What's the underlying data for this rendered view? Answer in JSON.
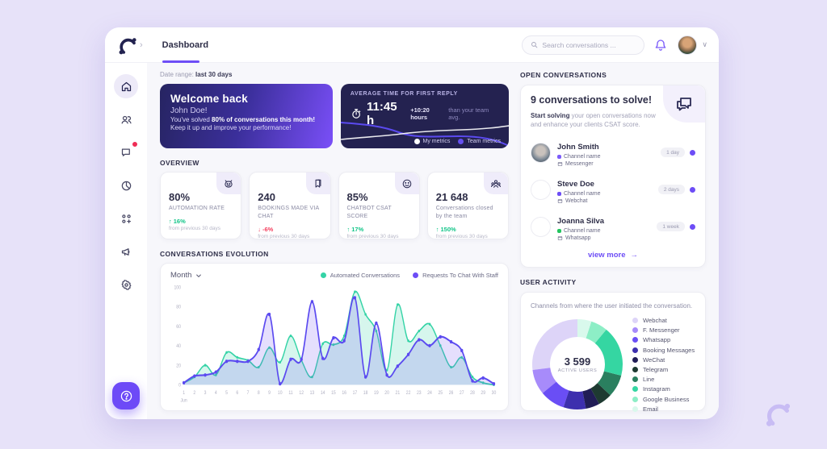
{
  "topbar": {
    "tab": "Dashboard",
    "expand_chevron": "›",
    "search_placeholder": "Search conversations ...",
    "caret": "∨"
  },
  "date_range": {
    "label": "Date range:",
    "value": "last 30 days"
  },
  "welcome": {
    "title": "Welcome back",
    "name": "John Doe!",
    "line1_pre": "You've solved ",
    "line1_bold": "80% of conversations this month!",
    "line2": "Keep it up and improve your performance!"
  },
  "reply": {
    "label": "AVERAGE TIME FOR FIRST REPLY",
    "value": "11:45 h",
    "delta": "+10:20 hours",
    "delta_suffix": "than your team avg.",
    "legend": [
      {
        "label": "My metrics",
        "color": "#ffffff"
      },
      {
        "label": "Team metrics",
        "color": "#6550f0"
      }
    ]
  },
  "overview": {
    "label": "Overview",
    "cards": [
      {
        "value": "80%",
        "label": "AUTOMATION RATE",
        "arrow": "↑",
        "delta": "16%",
        "note": "from previous 30 days",
        "icon": "robot-icon"
      },
      {
        "value": "240",
        "label": "BOOKINGS MADE VIA CHAT",
        "arrow": "↓",
        "delta": "-6%",
        "note": "from previous 30 days",
        "icon": "bookmark-icon"
      },
      {
        "value": "85%",
        "label": "CHATBOT CSAT SCORE",
        "arrow": "↑",
        "delta": "17%",
        "note": "from previous 30 days",
        "icon": "smiley-icon"
      },
      {
        "value": "21 648",
        "label": "Conversations closed by the team",
        "arrow": "↑",
        "delta": "150%",
        "note": "from previous 30 days",
        "icon": "team-icon"
      }
    ]
  },
  "evolution": {
    "label": "Conversations evolution",
    "filter": "Month"
  },
  "open_conversations": {
    "label": "Open conversations",
    "title": "9 conversations to solve!",
    "desc_bold": "Start solving",
    "desc_rest": " your open conversations now and enhance your clients CSAT score.",
    "rows": [
      {
        "name": "John Smith",
        "channel": "Channel name",
        "platform": "Messenger",
        "age": "1 day",
        "channel_dot": "#7c5cfa"
      },
      {
        "name": "Steve Doe",
        "channel": "Channel name",
        "platform": "Webchat",
        "age": "2 days",
        "channel_dot": "#6d4df6"
      },
      {
        "name": "Joanna Silva",
        "channel": "Channel name",
        "platform": "Whatsapp",
        "age": "1 week",
        "channel_dot": "#22c55e"
      }
    ],
    "view_more": "view more",
    "arrow": "→"
  },
  "user_activity": {
    "label": "User activity",
    "desc": "Channels from where the user initiated the conversation.",
    "center_value": "3 599",
    "center_label": "ACTIVE USERS"
  },
  "chart_data": [
    {
      "type": "line",
      "title": "Conversations Evolution",
      "x": [
        1,
        2,
        3,
        4,
        5,
        6,
        7,
        8,
        9,
        10,
        11,
        12,
        13,
        14,
        15,
        16,
        17,
        18,
        19,
        20,
        21,
        22,
        23,
        24,
        25,
        26,
        27,
        28,
        29,
        30
      ],
      "x_month_label": "Jun",
      "ylim": [
        0,
        100
      ],
      "yticks": [
        0,
        20,
        40,
        60,
        80,
        100
      ],
      "grid": false,
      "legend_position": "top-right",
      "series": [
        {
          "name": "Automated Conversations",
          "color": "#34d3a6",
          "values": [
            2,
            8,
            20,
            10,
            33,
            28,
            25,
            18,
            38,
            23,
            50,
            25,
            8,
            42,
            41,
            50,
            95,
            72,
            55,
            15,
            82,
            45,
            55,
            62,
            40,
            18,
            28,
            8,
            2,
            0
          ]
        },
        {
          "name": "Requests To Chat With Staff",
          "color": "#5b4af0",
          "values": [
            2,
            9,
            10,
            13,
            24,
            24,
            24,
            36,
            72,
            1,
            26,
            26,
            85,
            27,
            48,
            45,
            89,
            8,
            63,
            10,
            19,
            31,
            46,
            40,
            49,
            44,
            35,
            4,
            7,
            1
          ]
        }
      ]
    },
    {
      "type": "pie",
      "title": "User Activity",
      "center_value": "3 599",
      "center_label": "ACTIVE USERS",
      "segments": [
        {
          "label": "Webchat",
          "value": 27,
          "color": "#ddd4f8"
        },
        {
          "label": "F. Messenger",
          "value": 9,
          "color": "#a78bfa"
        },
        {
          "label": "Whatsapp",
          "value": 9,
          "color": "#6a4ef5"
        },
        {
          "label": "Booking Messages",
          "value": 8,
          "color": "#3d2fae"
        },
        {
          "label": "WeChat",
          "value": 5,
          "color": "#211d56"
        },
        {
          "label": "Telegram",
          "value": 5,
          "color": "#1e3a31"
        },
        {
          "label": "Line",
          "value": 8,
          "color": "#2a7f5f"
        },
        {
          "label": "Instagram",
          "value": 18,
          "color": "#35d6a2"
        },
        {
          "label": "Google Business",
          "value": 6,
          "color": "#8deec6"
        },
        {
          "label": "Email",
          "value": 5,
          "color": "#d9f9ec"
        }
      ]
    }
  ]
}
